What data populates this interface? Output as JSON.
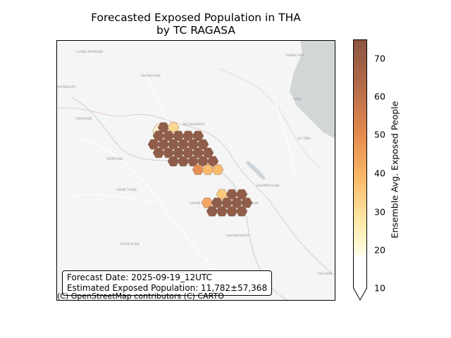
{
  "title_line1": "Forecasted Exposed Population in THA",
  "title_line2": "by TC RAGASA",
  "info": {
    "forecast_date": "Forecast Date: 2025-09-19_12UTC",
    "estimated": "Estimated Exposed Population: 11,782±57,368"
  },
  "attribution": "(C) OpenStreetMap contributors (C) CARTO",
  "map_labels": {
    "luang_prabang": "LUANG PRABANG",
    "phonsavan": "PHONSAVAN",
    "xayaboury": "XAYABOURY",
    "vientiane_prov": "VIENTIANE",
    "vientiane": "VIENTIANE",
    "bolikhamsai": "BOLIKHAMSAI",
    "udon_thani": "UDON THANI",
    "khammouane": "KHAMMOUANE",
    "thanh_hoa": "THANH HOA",
    "vinh": "VINH",
    "ha_tinh": "HA TINH",
    "sakon": "SAKON",
    "nakhon_phanom": "NAKHON PHANOM",
    "savannakhet": "SAVANNAKHET",
    "khon_kaen": "KHON KAEN",
    "salavan": "SALAVAN"
  },
  "colorbar": {
    "label": "Ensemble Avg. Exposed People",
    "ticks": [
      "10",
      "20",
      "30",
      "40",
      "50",
      "60",
      "70"
    ],
    "colors": [
      "#fffde6",
      "#fde9a6",
      "#f9b867",
      "#e58a4e",
      "#b56c4a",
      "#8b5541"
    ]
  }
}
